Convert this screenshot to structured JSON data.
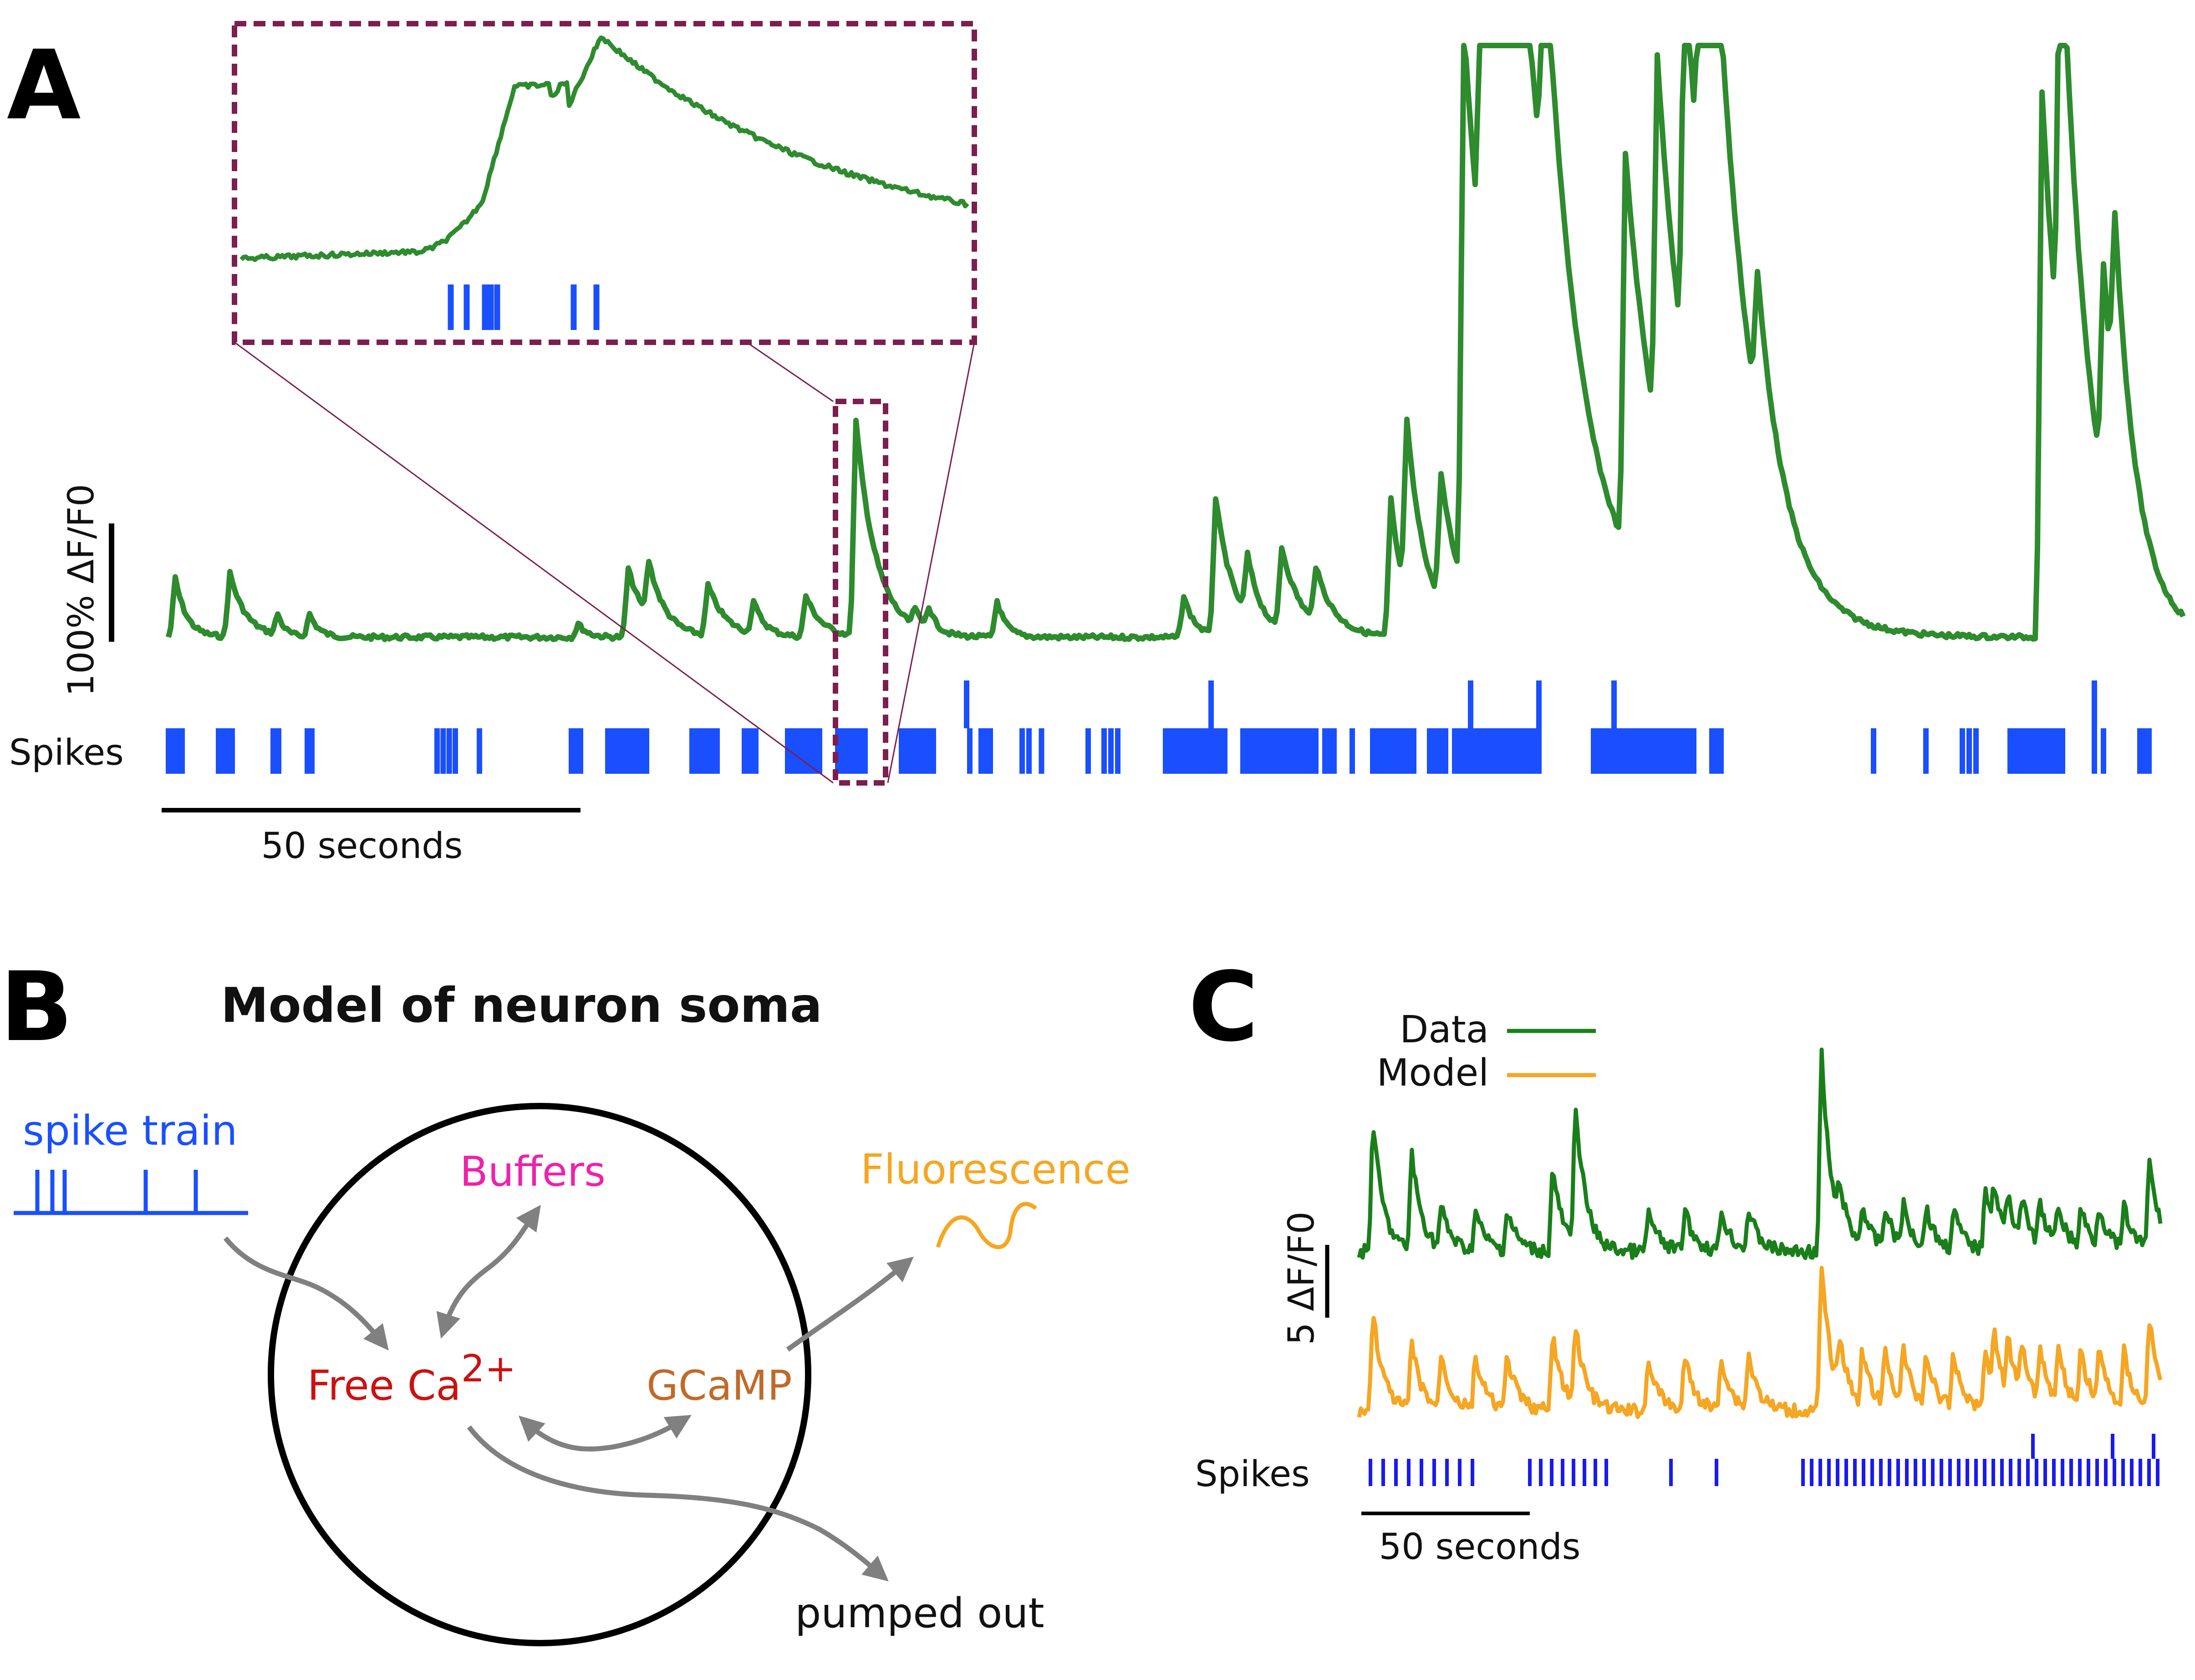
{
  "panels": {
    "a": {
      "letter": "A",
      "scale_bar_label": "100% ΔF/F0",
      "spikes_label": "Spikes",
      "time_scale_label": "50 seconds"
    },
    "b": {
      "letter": "B",
      "title": "Model of neuron soma",
      "spike_train_label": "spike train",
      "buffers_label": "Buffers",
      "free_ca_label": "Free Ca",
      "free_ca_superscript": "2+",
      "gcamp_label": "GCaMP",
      "fluorescence_label": "Fluorescence",
      "pumped_out_label": "pumped out"
    },
    "c": {
      "letter": "C",
      "legend": [
        {
          "label": "Data",
          "color": "#1a7f1a"
        },
        {
          "label": "Model",
          "color": "#f5a623"
        }
      ],
      "scale_bar_label": "5 ΔF/F0",
      "spikes_label": "Spikes",
      "time_scale_label": "50 seconds"
    }
  },
  "colors": {
    "trace_a": "#2e8b2e",
    "data_c": "#1a7f1a",
    "model_c": "#f5a623",
    "spikes": "#1a4fff",
    "spikes_c": "#1a1aee",
    "inset_frame": "#7b1f4f",
    "buffers": "#ee22aa",
    "free_ca": "#cc1111",
    "gcamp": "#c06a2a",
    "fluorescence": "#f5a623",
    "spike_train": "#1a4fff",
    "arrow": "#808080"
  }
}
